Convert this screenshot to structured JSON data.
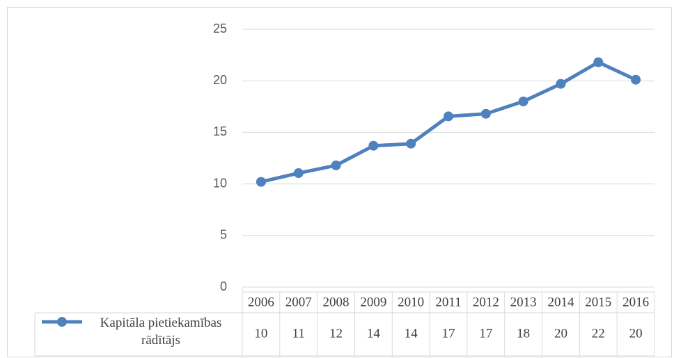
{
  "chart_data": {
    "type": "line",
    "categories": [
      "2006",
      "2007",
      "2008",
      "2009",
      "2010",
      "2011",
      "2012",
      "2013",
      "2014",
      "2015",
      "2016"
    ],
    "series": [
      {
        "name": "Kapitāla pietiekamības rādītājs",
        "color": "#4f81bd",
        "values": [
          10.2,
          11.05,
          11.8,
          13.7,
          13.9,
          16.55,
          16.8,
          18.0,
          19.7,
          21.8,
          20.1
        ],
        "value_labels": [
          "10",
          "11",
          "12",
          "14",
          "14",
          "17",
          "17",
          "18",
          "20",
          "22",
          "20"
        ]
      }
    ],
    "ylim": [
      0,
      25
    ],
    "yticks": [
      0,
      5,
      10,
      15,
      20,
      25
    ],
    "grid": true
  }
}
